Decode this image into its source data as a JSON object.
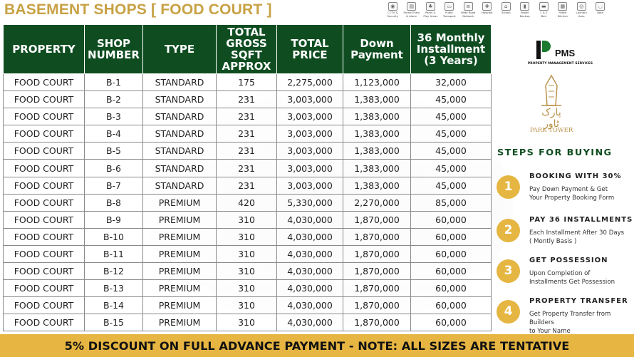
{
  "title": "BASEMENT SHOPS  [ FOOD COURT ]",
  "amenities": [
    {
      "icon": "cctv-icon",
      "label": "CCTV &\nSecurity",
      "glyph": "◉"
    },
    {
      "icon": "smart-entry-icon",
      "label": "Smart Entry\n& Alarm",
      "glyph": "▤"
    },
    {
      "icon": "park-icon",
      "label": "Parks &\nPlay Areas",
      "glyph": "♣"
    },
    {
      "icon": "bus-icon",
      "label": "Public\nTransport",
      "glyph": "▭"
    },
    {
      "icon": "road-icon",
      "label": "Wide Road\nNetwork",
      "glyph": "≡"
    },
    {
      "icon": "hospital-icon",
      "label": "Hospital",
      "glyph": "✚"
    },
    {
      "icon": "school-icon",
      "label": "School",
      "glyph": "⌂"
    },
    {
      "icon": "power-icon",
      "label": "Power\nBackup",
      "glyph": "▮"
    },
    {
      "icon": "bed-icon",
      "label": "1 & 2\nBed",
      "glyph": "▬"
    },
    {
      "icon": "kitchen-icon",
      "label": "Fitted\nKitchen",
      "glyph": "▦"
    },
    {
      "icon": "laundry-icon",
      "label": "Laundry\nArea",
      "glyph": "◎"
    },
    {
      "icon": "bath-icon",
      "label": "Bath",
      "glyph": "◡"
    }
  ],
  "table": {
    "headers": [
      "PROPERTY",
      "SHOP\nNUMBER",
      "TYPE",
      "TOTAL\nGROSS\nSQFT\nAPPROX",
      "TOTAL\nPRICE",
      "Down\nPayment",
      "36 Monthly\nInstallment\n(3 Years)"
    ],
    "rows": [
      [
        "FOOD COURT",
        "B-1",
        "STANDARD",
        "175",
        "2,275,000",
        "1,123,000",
        "32,000"
      ],
      [
        "FOOD COURT",
        "B-2",
        "STANDARD",
        "231",
        "3,003,000",
        "1,383,000",
        "45,000"
      ],
      [
        "FOOD COURT",
        "B-3",
        "STANDARD",
        "231",
        "3,003,000",
        "1,383,000",
        "45,000"
      ],
      [
        "FOOD COURT",
        "B-4",
        "STANDARD",
        "231",
        "3,003,000",
        "1,383,000",
        "45,000"
      ],
      [
        "FOOD COURT",
        "B-5",
        "STANDARD",
        "231",
        "3,003,000",
        "1,383,000",
        "45,000"
      ],
      [
        "FOOD COURT",
        "B-6",
        "STANDARD",
        "231",
        "3,003,000",
        "1,383,000",
        "45,000"
      ],
      [
        "FOOD COURT",
        "B-7",
        "STANDARD",
        "231",
        "3,003,000",
        "1,383,000",
        "45,000"
      ],
      [
        "FOOD COURT",
        "B-8",
        "PREMIUM",
        "420",
        "5,330,000",
        "2,270,000",
        "85,000"
      ],
      [
        "FOOD COURT",
        "B-9",
        "PREMIUM",
        "310",
        "4,030,000",
        "1,870,000",
        "60,000"
      ],
      [
        "FOOD COURT",
        "B-10",
        "PREMIUM",
        "310",
        "4,030,000",
        "1,870,000",
        "60,000"
      ],
      [
        "FOOD COURT",
        "B-11",
        "PREMIUM",
        "310",
        "4,030,000",
        "1,870,000",
        "60,000"
      ],
      [
        "FOOD COURT",
        "B-12",
        "PREMIUM",
        "310",
        "4,030,000",
        "1,870,000",
        "60,000"
      ],
      [
        "FOOD COURT",
        "B-13",
        "PREMIUM",
        "310",
        "4,030,000",
        "1,870,000",
        "60,000"
      ],
      [
        "FOOD COURT",
        "B-14",
        "PREMIUM",
        "310",
        "4,030,000",
        "1,870,000",
        "60,000"
      ],
      [
        "FOOD COURT",
        "B-15",
        "PREMIUM",
        "310",
        "4,030,000",
        "1,870,000",
        "60,000"
      ]
    ]
  },
  "pms": {
    "name": "PMS",
    "subtitle": "PROPERTY MANAGEMENT SERVICES"
  },
  "park_tower": {
    "urdu": "پارک ٹاور",
    "name": "PARK TOWER"
  },
  "steps_heading": "STEPS FOR BUYING",
  "steps": [
    {
      "num": "1",
      "title": "BOOKING WITH 30%",
      "desc": "Pay Down Payment & Get\nYour Property Booking Form"
    },
    {
      "num": "2",
      "title": "PAY 36 INSTALLMENTS",
      "desc": "Each Installment After 30 Days\n( Montly Basis )"
    },
    {
      "num": "3",
      "title": "GET POSSESSION",
      "desc": "Upon Completion of\nInstallments Get Possession"
    },
    {
      "num": "4",
      "title": "PROPERTY TRANSFER",
      "desc": "Get Property Transfer from Builders\nto Your Name"
    }
  ],
  "footer": "5% DISCOUNT ON FULL ADVANCE PAYMENT - NOTE: ALL SIZES ARE TENTATIVE",
  "colors": {
    "header_green": "#0f4d21",
    "gold": "#e7b642",
    "title_gold": "#c8a144"
  }
}
